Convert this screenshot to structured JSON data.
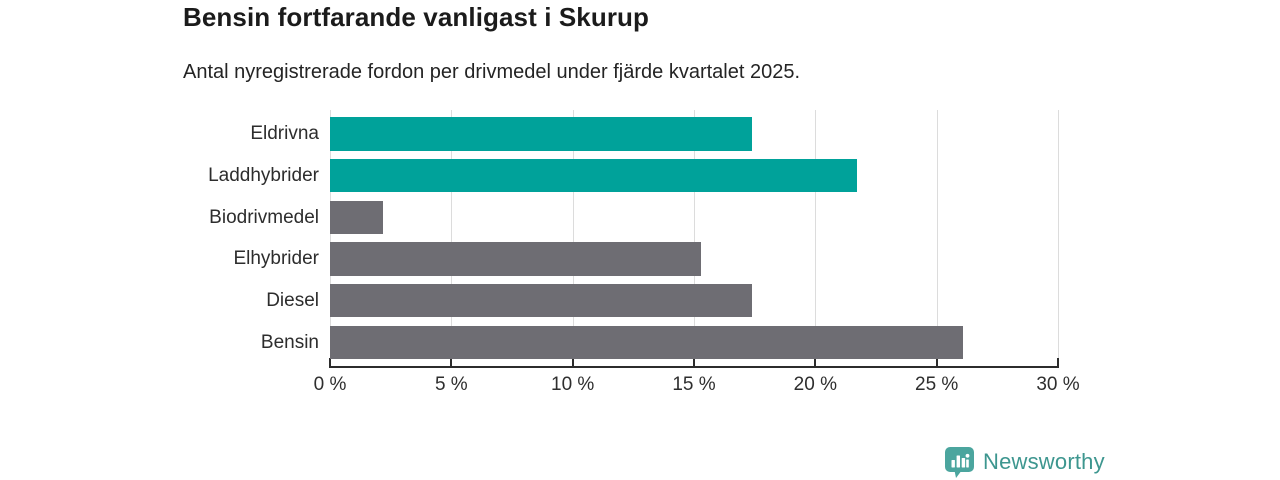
{
  "header": {
    "title": "Bensin fortfarande vanligast i Skurup",
    "subtitle": "Antal nyregistrerade fordon per drivmedel under fjärde kvartalet 2025."
  },
  "chart_data": {
    "type": "bar",
    "orientation": "horizontal",
    "title": "Bensin fortfarande vanligast i Skurup",
    "subtitle": "Antal nyregistrerade fordon per drivmedel under fjärde kvartalet 2025.",
    "categories": [
      "Eldrivna",
      "Laddhybrider",
      "Biodrivmedel",
      "Elhybrider",
      "Diesel",
      "Bensin"
    ],
    "values": [
      17.4,
      21.7,
      2.2,
      15.3,
      17.4,
      26.1
    ],
    "unit": "%",
    "xlim": [
      0,
      30
    ],
    "xticks": [
      0,
      5,
      10,
      15,
      20,
      25,
      30
    ],
    "xtick_format": "{value} %",
    "bar_colors": [
      "#00a29a",
      "#00a29a",
      "#6e6d73",
      "#6e6d73",
      "#6e6d73",
      "#6e6d73"
    ],
    "grid": true,
    "legend": false,
    "colors": {
      "highlight": "#00a29a",
      "default_bar": "#6e6d73",
      "gridline": "#dcdcdc",
      "axis": "#2c2c2c",
      "title_text": "#1b1b1b",
      "label_text": "#2d2d2d"
    }
  },
  "branding": {
    "logo_text": "Newsworthy",
    "logo_text_color": "#3d968f",
    "logo_icon": "newsworthy-bar-chart-badge-icon",
    "logo_icon_color": "#4ba59e"
  }
}
